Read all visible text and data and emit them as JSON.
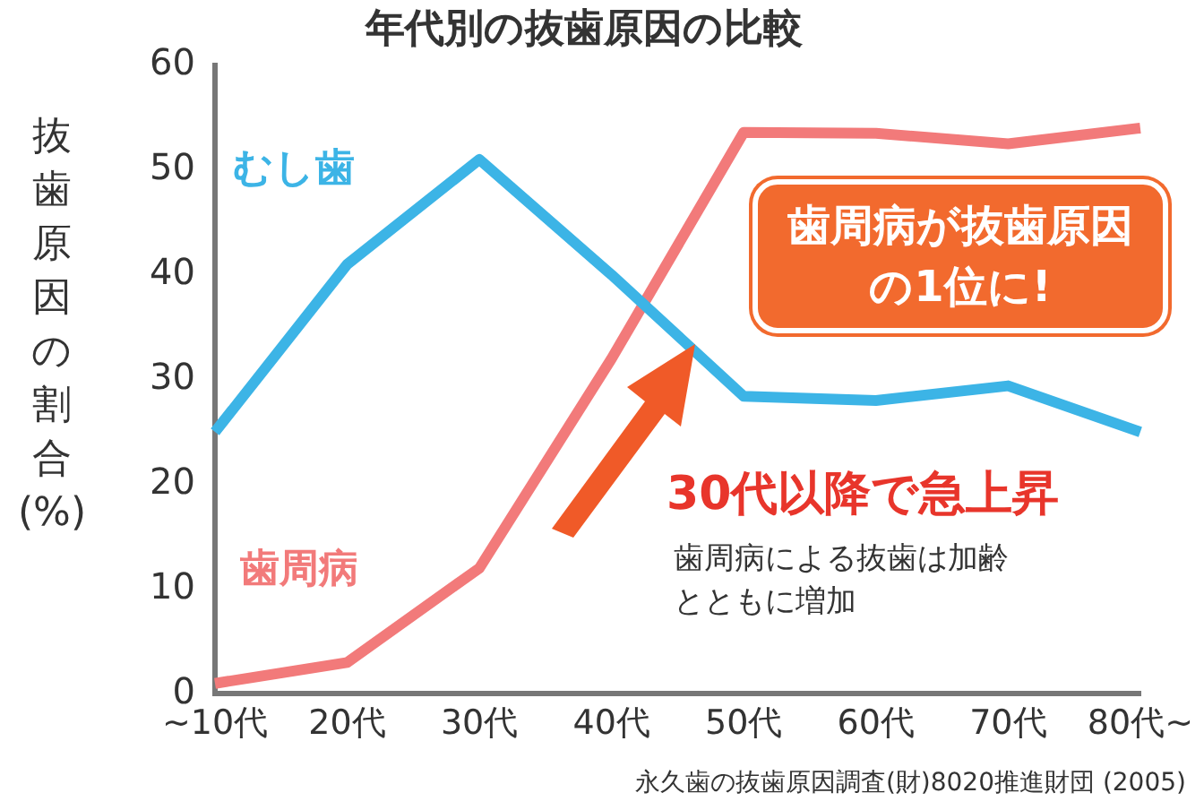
{
  "chart_data": {
    "type": "line",
    "title": "年代別の抜歯原因の比較",
    "ylabel": "抜歯原因の割合(%)",
    "categories": [
      "~10代",
      "20代",
      "30代",
      "40代",
      "50代",
      "60代",
      "70代",
      "80代~"
    ],
    "series": [
      {
        "name": "むし歯",
        "color": "#3cb4e6",
        "values": [
          25,
          41,
          51,
          40,
          28.4,
          28,
          29.4,
          25
        ]
      },
      {
        "name": "歯周病",
        "color": "#f27a7a",
        "values": [
          1,
          3,
          12,
          32,
          53.6,
          53.5,
          52.5,
          54
        ]
      }
    ],
    "ylim": [
      0,
      60
    ],
    "yticks": [
      0,
      10,
      20,
      30,
      40,
      50,
      60
    ],
    "marker": "none",
    "line_style": "solid",
    "annotations": [
      "歯周病が抜歯原因の1位に!",
      "30代以降で急上昇",
      "歯周病による抜歯は加齢とともに増加",
      "永久歯の抜歯原因調査(財)8020推進財団 (2005)"
    ]
  }
}
